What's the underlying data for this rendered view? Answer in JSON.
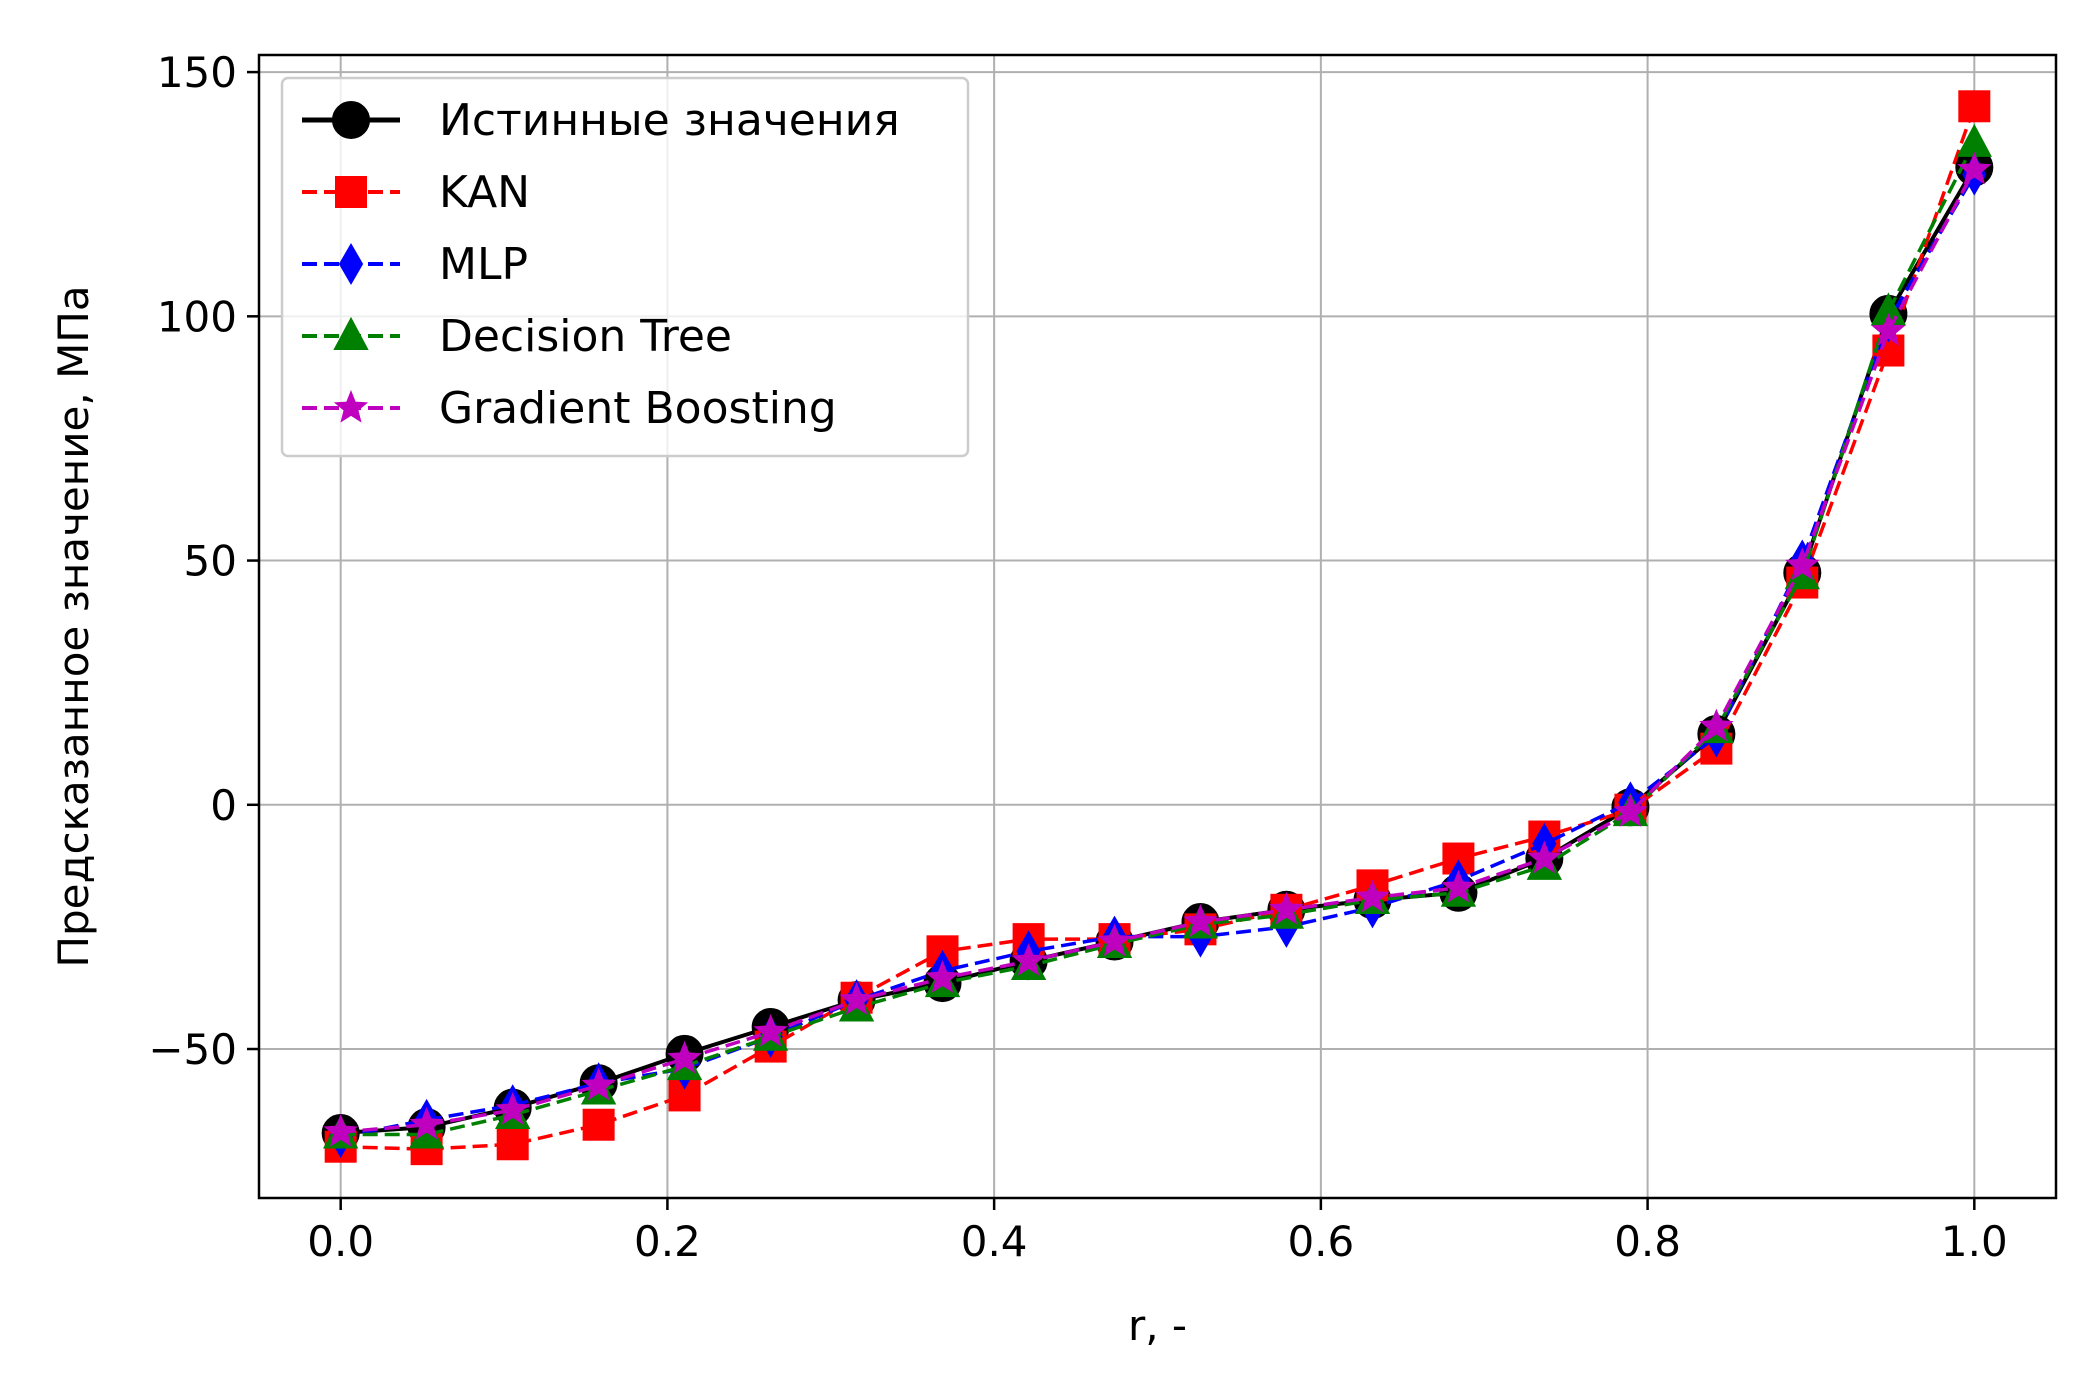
{
  "chart_data": {
    "type": "line",
    "xlabel": "r, -",
    "ylabel": "Предсказанное значение, МПа",
    "xlim": [
      -0.05,
      1.05
    ],
    "ylim": [
      -80.5,
      153.5
    ],
    "xticks": [
      0.0,
      0.2,
      0.4,
      0.6,
      0.8,
      1.0
    ],
    "xtick_labels": [
      "0.0",
      "0.2",
      "0.4",
      "0.6",
      "0.8",
      "1.0"
    ],
    "yticks": [
      -50,
      0,
      50,
      100,
      150
    ],
    "ytick_labels": [
      "−50",
      "0",
      "50",
      "100",
      "150"
    ],
    "grid": true,
    "legend_position": "top-left",
    "x": [
      0.0,
      0.0526,
      0.1053,
      0.1579,
      0.2105,
      0.2632,
      0.3158,
      0.3684,
      0.4211,
      0.4737,
      0.5263,
      0.5789,
      0.6316,
      0.6842,
      0.7368,
      0.7895,
      0.8421,
      0.8947,
      0.9474,
      1.0
    ],
    "series": [
      {
        "name": "Истинные значения",
        "color": "#000000",
        "linestyle": "solid",
        "marker": "circle",
        "values": [
          -67.2,
          -66.0,
          -62.0,
          -57.0,
          -51.0,
          -45.5,
          -40.0,
          -36.5,
          -32.0,
          -28.0,
          -24.0,
          -21.5,
          -19.5,
          -18.0,
          -11.0,
          -0.5,
          14.5,
          47.5,
          100.5,
          130.5
        ]
      },
      {
        "name": "KAN",
        "color": "#ff0000",
        "linestyle": "dashed",
        "marker": "square",
        "values": [
          -70.0,
          -70.5,
          -69.5,
          -65.5,
          -59.5,
          -49.5,
          -39.5,
          -30.0,
          -27.5,
          -27.5,
          -25.5,
          -21.5,
          -16.5,
          -11.0,
          -6.5,
          -1.0,
          11.5,
          45.5,
          93.0,
          143.0
        ]
      },
      {
        "name": "MLP",
        "color": "#0000ff",
        "linestyle": "dashed",
        "marker": "diamond",
        "values": [
          -68.0,
          -64.5,
          -61.5,
          -57.0,
          -54.0,
          -47.5,
          -40.0,
          -34.0,
          -30.0,
          -27.0,
          -27.0,
          -25.0,
          -21.0,
          -15.5,
          -8.0,
          0.5,
          14.0,
          50.0,
          99.0,
          129.0
        ]
      },
      {
        "name": "Decision Tree",
        "color": "#008000",
        "linestyle": "dashed",
        "marker": "triangle",
        "values": [
          -67.5,
          -67.5,
          -63.5,
          -58.5,
          -53.5,
          -47.5,
          -41.5,
          -36.5,
          -33.0,
          -28.5,
          -24.5,
          -22.5,
          -19.5,
          -18.0,
          -12.5,
          -1.5,
          15.5,
          47.0,
          101.0,
          135.5
        ]
      },
      {
        "name": "Gradient Boosting",
        "color": "#bf00bf",
        "linestyle": "dashed",
        "marker": "star",
        "values": [
          -67.0,
          -65.5,
          -62.5,
          -57.5,
          -52.0,
          -46.5,
          -40.0,
          -35.5,
          -32.0,
          -28.0,
          -24.0,
          -21.5,
          -19.0,
          -17.0,
          -11.0,
          -1.5,
          16.0,
          49.0,
          97.0,
          130.0
        ]
      }
    ]
  }
}
